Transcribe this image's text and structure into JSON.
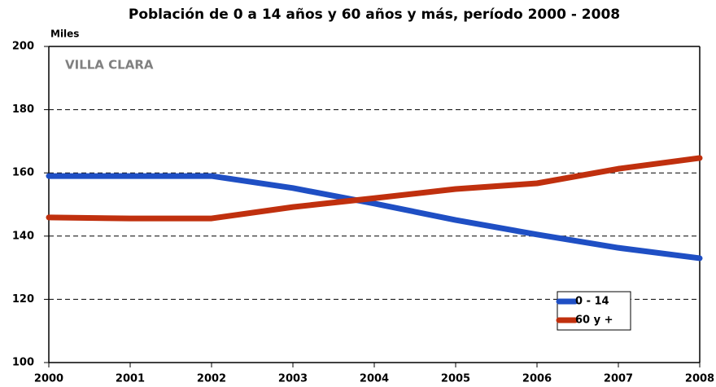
{
  "chart_data": {
    "type": "line",
    "title": "Población de 0 a 14 años y 60 años y más, período 2000 - 2008",
    "y_label": "Miles",
    "annotation": "VILLA CLARA",
    "categories": [
      "2000",
      "2001",
      "2002",
      "2003",
      "2004",
      "2005",
      "2006",
      "2007",
      "2008"
    ],
    "series": [
      {
        "name": "0 - 14",
        "color": "#1f4fc4",
        "values": [
          159,
          159,
          159,
          155.2,
          150.3,
          145.1,
          140.5,
          136.3,
          133
        ]
      },
      {
        "name": "60 y +",
        "color": "#c0300e",
        "values": [
          145.9,
          145.6,
          145.6,
          149.2,
          152,
          154.9,
          156.7,
          161.3,
          164.7
        ]
      }
    ],
    "ylim": [
      100,
      200
    ],
    "yticks": [
      100,
      120,
      140,
      160,
      180,
      200
    ],
    "grid": true,
    "legend": "lower right"
  }
}
